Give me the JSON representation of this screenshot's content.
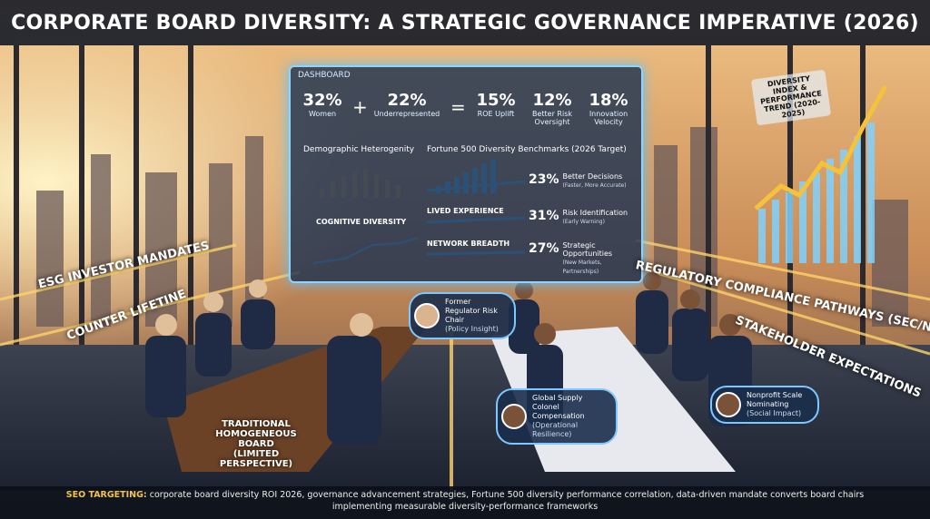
{
  "title": "CORPORATE BOARD DIVERSITY: A STRATEGIC GOVERNANCE IMPERATIVE (2026)",
  "dashboard": {
    "label": "DASHBOARD",
    "kpis": [
      {
        "value": "32%",
        "label": "Women"
      },
      {
        "value": "22%",
        "label": "Underrepresented"
      },
      {
        "value": "15%",
        "label": "ROE Uplift"
      },
      {
        "value": "12%",
        "label": "Better Risk Oversight"
      },
      {
        "value": "18%",
        "label": "Innovation Velocity"
      }
    ],
    "operators": [
      "+",
      "="
    ],
    "left_panel": {
      "title": "Demographic Heterogenity",
      "subtitle": "COGNITIVE DIVERSITY"
    },
    "right_panel": {
      "title": "Fortune 500 Diversity Benchmarks (2026 Target)",
      "flows": [
        "LIVED EXPERIENCE",
        "NETWORK BREADTH"
      ],
      "benchmarks": [
        {
          "value": "23%",
          "label": "Better Decisions",
          "note": "(Faster, More Accurate)"
        },
        {
          "value": "31%",
          "label": "Risk Identification",
          "note": "(Early Warning)"
        },
        {
          "value": "27%",
          "label": "Strategic Opportunities",
          "note": "(New Markets, Partnerships)"
        }
      ]
    }
  },
  "trend_chart": {
    "title": "DIVERSITY INDEX & PERFORMANCE TREND (2020-2025)"
  },
  "banners": [
    "ESG INVESTOR MANDATES",
    "COUNTER LIFETINE",
    "REGULATORY COMPLIANCE PATHWAYS (SEC/NASDAQ)",
    "STAKEHOLDER EXPECTATIONS"
  ],
  "callouts": [
    {
      "title": "Former Regulator Risk Chair",
      "note": "(Policy Insight)"
    },
    {
      "title": "Global Supply Colonel Compensation",
      "note": "(Operational Resilience)"
    },
    {
      "title": "Nonprofit Scale Nominating",
      "note": "(Social Impact)"
    }
  ],
  "traditional_board": {
    "title": "TRADITIONAL HOMOGENEOUS BOARD",
    "note": "(LIMITED PERSPECTIVE)"
  },
  "footer": {
    "label": "SEO TARGETING:",
    "text": "corporate board diversity ROI 2026, governance advancement strategies, Fortune 500 diversity performance correlation, data-driven mandate converts board chairs implementing measurable diversity-performance frameworks"
  }
}
